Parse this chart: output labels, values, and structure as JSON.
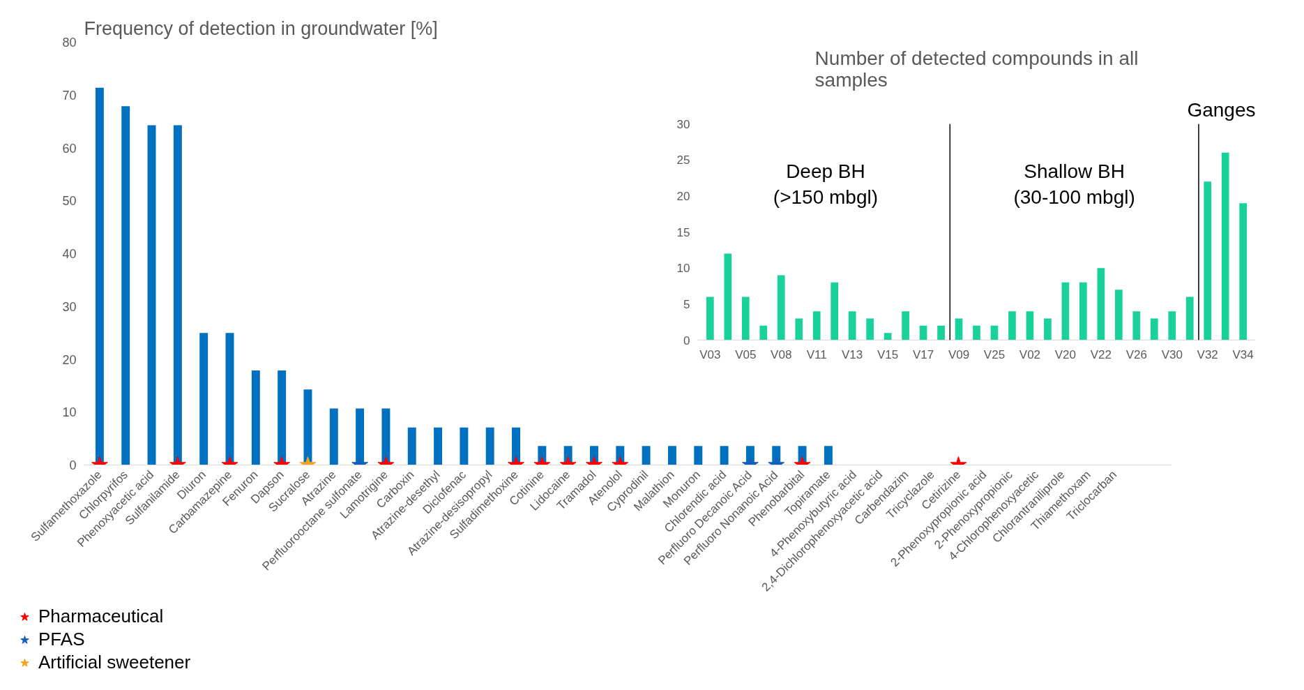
{
  "chart_data": [
    {
      "type": "bar",
      "title": "Frequency of detection in groundwater [%]",
      "categories": [
        "Sulfamethoxazole",
        "Chlorpyrifos",
        "Phenoxyacetic acid",
        "Sulfanilamide",
        "Diuron",
        "Carbamazepine",
        "Fenuron",
        "Dapson",
        "Sucralose",
        "Atrazine",
        "Perfluorooctane sulfonate",
        "Lamotrigine",
        "Carboxin",
        "Atrazine-desethyl",
        "Diclofenac",
        "Atrazine-desisopropyl",
        "Sulfadimethoxine",
        "Cotinine",
        "Lidocaine",
        "Tramadol",
        "Atenolol",
        "Cyprodinil",
        "Malathion",
        "Monuron",
        "Chlorendic acid",
        "Perfluoro Decanoic Acid",
        "Perfluoro Nonanoic Acid",
        "Phenobarbital",
        "Topiramate",
        "4-Phenoxybutyric acid",
        "2,4-Dichlorophenoxyacetic acid",
        "Carbendazim",
        "Tricyclazole",
        "Cetirizine",
        "2-Phenoxypropionic acid",
        "2-Phenoxypropionic",
        "4-Chlorophenoxyacetic",
        "Chlorantraniliprole",
        "Thiamethoxam",
        "Triclocarban"
      ],
      "series": [
        {
          "color": "#0070c0",
          "values": [
            71.4,
            67.9,
            64.3,
            64.3,
            25,
            25,
            17.9,
            17.9,
            14.3,
            10.7,
            10.7,
            10.7,
            7.1,
            7.1,
            7.1,
            7.1,
            7.1,
            3.6,
            3.6,
            3.6,
            3.6,
            3.6,
            3.6,
            3.6,
            3.6,
            3.6,
            3.6,
            3.6,
            3.6,
            0,
            0,
            0,
            0,
            0,
            0,
            0,
            0,
            0,
            0,
            0
          ]
        },
        {
          "type": "scatter",
          "name": "Pharmaceutical",
          "color": "#ff0000",
          "x": [
            "Sulfamethoxazole",
            "Sulfanilamide",
            "Carbamazepine",
            "Dapson",
            "Lamotrigine",
            "Sulfadimethoxine",
            "Cotinine",
            "Lidocaine",
            "Tramadol",
            "Atenolol",
            "Phenobarbital",
            "Cetirizine"
          ],
          "values": [
            0,
            0,
            0,
            0,
            0,
            0,
            0,
            0,
            0,
            0,
            0,
            0
          ]
        },
        {
          "type": "scatter",
          "name": "PFAS",
          "color": "#1560bd",
          "x": [
            "Perfluorooctane sulfonate",
            "Perfluoro Decanoic Acid",
            "Perfluoro Nonanoic Acid"
          ],
          "values": [
            0,
            0,
            0
          ]
        },
        {
          "type": "scatter",
          "name": "Artificial sweetener",
          "color": "#f7a21b",
          "x": [
            "Sucralose"
          ],
          "values": [
            0
          ]
        }
      ],
      "marker": "star",
      "ylim": [
        0,
        80
      ],
      "yticks": [
        0,
        10,
        20,
        30,
        40,
        50,
        60,
        70,
        80
      ],
      "grid": false,
      "legend": "bottom left"
    },
    {
      "type": "bar",
      "title": "Number of detected compounds in all samples",
      "categories": [
        "V03",
        null,
        "V05",
        null,
        "V08",
        null,
        "V11",
        null,
        "V13",
        null,
        "V15",
        null,
        "V17",
        null,
        "V09",
        null,
        "V25",
        null,
        "V02",
        null,
        "V20",
        null,
        "V22",
        null,
        "V26",
        null,
        "V30",
        null,
        "V32",
        null,
        "V34"
      ],
      "values": [
        6,
        12,
        6,
        2,
        9,
        3,
        4,
        8,
        4,
        3,
        1,
        4,
        2,
        2,
        3,
        2,
        2,
        4,
        4,
        3,
        8,
        8,
        10,
        7,
        4,
        3,
        4,
        6,
        22,
        26,
        19
      ],
      "color": "#19d19b",
      "ylim": [
        0,
        30
      ],
      "yticks": [
        0,
        5,
        10,
        15,
        20,
        25,
        30
      ],
      "grid": false,
      "annotations": [
        "Deep BH\n(>150 mbgl)",
        "Shallow BH\n(30-100 mbgl)",
        "Ganges"
      ]
    }
  ]
}
